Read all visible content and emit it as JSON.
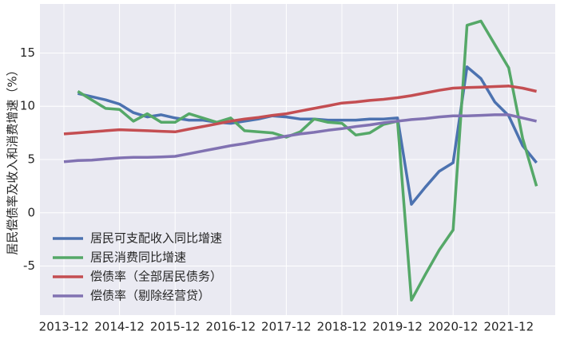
{
  "chart_data": {
    "type": "line",
    "y_label": "居民偿债率及收入和消费增速（%）",
    "categories": [
      "2013-12",
      null,
      null,
      null,
      "2014-12",
      null,
      null,
      null,
      "2015-12",
      null,
      null,
      null,
      "2016-12",
      null,
      null,
      null,
      "2017-12",
      null,
      null,
      null,
      "2018-12",
      null,
      null,
      null,
      "2019-12",
      null,
      null,
      null,
      "2020-12",
      null,
      null,
      null,
      "2021-12",
      null,
      null
    ],
    "series": [
      {
        "name": "居民可支配收入同比增速",
        "color": "#4c72b0",
        "values": [
          null,
          11.2,
          10.9,
          10.6,
          10.2,
          9.4,
          9.0,
          9.2,
          8.9,
          8.7,
          8.7,
          8.5,
          8.4,
          8.6,
          8.8,
          9.1,
          9.0,
          8.8,
          8.8,
          8.7,
          8.7,
          8.7,
          8.8,
          8.8,
          8.9,
          0.8,
          2.4,
          3.9,
          4.7,
          13.7,
          12.6,
          10.4,
          9.1,
          6.3,
          4.7
        ]
      },
      {
        "name": "居民消费同比增速",
        "color": "#55a868",
        "values": [
          null,
          11.4,
          10.6,
          9.8,
          9.7,
          8.6,
          9.3,
          8.5,
          8.5,
          9.3,
          8.9,
          8.5,
          8.9,
          7.7,
          7.6,
          7.5,
          7.1,
          7.6,
          8.8,
          8.5,
          8.4,
          7.3,
          7.5,
          8.3,
          8.6,
          -8.2,
          -5.8,
          -3.5,
          -1.6,
          17.6,
          18.0,
          15.8,
          13.6,
          7.0,
          2.5
        ]
      },
      {
        "name": "偿债率（全部居民债务）",
        "color": "#c44e52",
        "values": [
          7.4,
          7.5,
          7.6,
          7.7,
          7.8,
          7.75,
          7.7,
          7.65,
          7.6,
          7.85,
          8.1,
          8.35,
          8.6,
          8.8,
          8.95,
          9.15,
          9.3,
          9.55,
          9.8,
          10.05,
          10.3,
          10.4,
          10.55,
          10.65,
          10.8,
          11.0,
          11.25,
          11.5,
          11.7,
          11.75,
          11.8,
          11.85,
          11.9,
          11.7,
          11.4
        ]
      },
      {
        "name": "偿债率（剔除经营贷）",
        "color": "#8172b2",
        "values": [
          4.8,
          4.9,
          4.95,
          5.05,
          5.15,
          5.2,
          5.2,
          5.25,
          5.3,
          5.55,
          5.8,
          6.05,
          6.3,
          6.5,
          6.75,
          6.95,
          7.2,
          7.4,
          7.55,
          7.75,
          7.9,
          8.1,
          8.25,
          8.45,
          8.6,
          8.75,
          8.85,
          9.0,
          9.1,
          9.1,
          9.15,
          9.2,
          9.2,
          8.9,
          8.6
        ]
      }
    ],
    "ylim": [
      -9.6,
      19.6
    ],
    "yticks": [
      -5,
      0,
      5,
      10,
      15
    ],
    "grid": true,
    "legend": "lower left"
  }
}
